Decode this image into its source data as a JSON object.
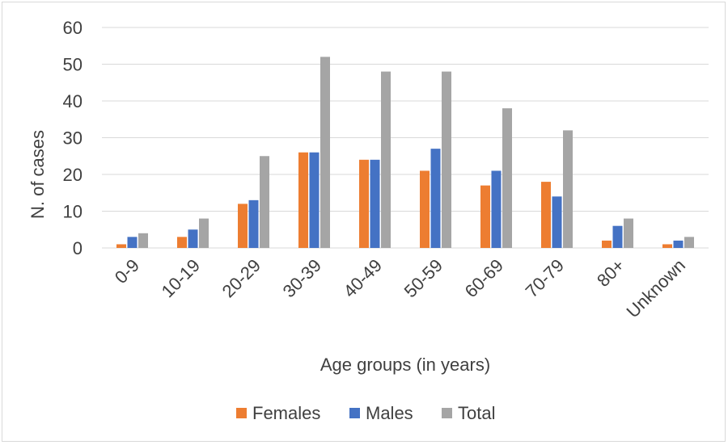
{
  "chart_data": {
    "type": "bar",
    "title": "",
    "xlabel": "Age groups (in years)",
    "ylabel": "N. of cases",
    "ylim": [
      0,
      60
    ],
    "yticks": [
      "0",
      "10",
      "20",
      "30",
      "40",
      "50",
      "60"
    ],
    "grid": true,
    "legend_position": "bottom",
    "categories": [
      "0-9",
      "10-19",
      "20-29",
      "30-39",
      "40-49",
      "50-59",
      "60-69",
      "70-79",
      "80+",
      "Unknown"
    ],
    "series": [
      {
        "name": "Females",
        "color": "#ed7d31",
        "values": [
          1,
          3,
          12,
          26,
          24,
          21,
          17,
          18,
          2,
          1
        ]
      },
      {
        "name": "Males",
        "color": "#4472c4",
        "values": [
          3,
          5,
          13,
          26,
          24,
          27,
          21,
          14,
          6,
          2
        ]
      },
      {
        "name": "Total",
        "color": "#a5a5a5",
        "values": [
          4,
          8,
          25,
          52,
          48,
          48,
          38,
          32,
          8,
          3
        ]
      }
    ]
  }
}
